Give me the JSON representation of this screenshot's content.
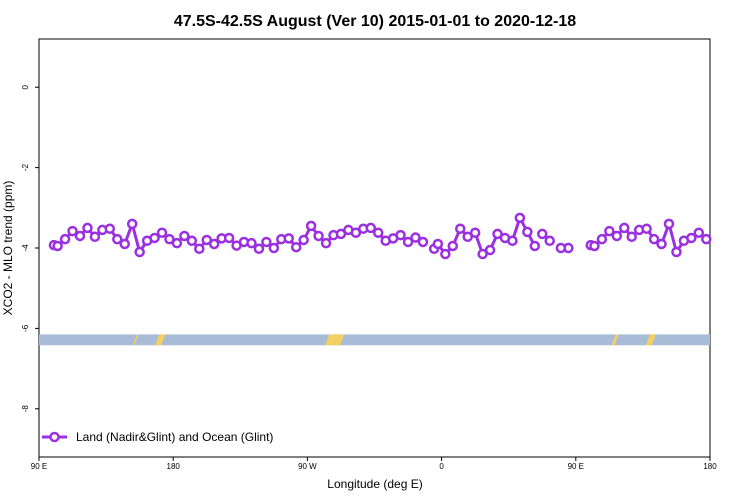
{
  "chart_data": {
    "type": "line",
    "title": "47.5S-42.5S August (Ver 10)   2015-01-01 to 2020-12-18",
    "xlabel": "Longitude (deg E)",
    "ylabel": "XCO2 - MLO trend (ppm)",
    "xlim": [
      90,
      450
    ],
    "ylim": [
      -9.2,
      1.2
    ],
    "x_ticks": [
      {
        "value": 90,
        "label": "90 E"
      },
      {
        "value": 180,
        "label": "180"
      },
      {
        "value": 270,
        "label": "90 W"
      },
      {
        "value": 360,
        "label": "0"
      },
      {
        "value": 450,
        "label": "90 E"
      },
      {
        "value": 540,
        "label": "180"
      }
    ],
    "y_ticks": [
      {
        "value": 0,
        "label": "0"
      },
      {
        "value": -2,
        "label": "-2"
      },
      {
        "value": -4,
        "label": "-4"
      },
      {
        "value": -6,
        "label": "-6"
      },
      {
        "value": -8,
        "label": "-8"
      }
    ],
    "grid": false,
    "legend_position": "bottom-left",
    "series": [
      {
        "name": "Land (Nadir&Glint) and Ocean (Glint)",
        "color": "#9b30e0",
        "segments": [
          {
            "x": [
              100,
              102.5,
              107.5,
              112.5,
              117.5,
              122.5,
              127.5,
              132.5,
              137.5,
              142.5,
              147.5,
              152.5,
              157.5,
              162.5,
              167.5,
              172.5,
              177.5,
              182.5,
              187.5,
              192.5,
              197.5,
              202.5,
              207.5,
              212.5,
              217.5,
              222.5,
              227.5,
              232.5,
              237.5,
              242.5,
              247.5,
              252.5,
              257.5,
              262.5,
              267.5,
              272.5,
              277.5,
              282.5,
              287.5,
              292.5,
              297.5,
              302.5,
              307.5,
              312.5,
              317.5,
              322.5,
              327.5,
              332.5,
              337.5,
              342.5,
              347.5
            ],
            "y": [
              -3.93,
              -3.95,
              -3.78,
              -3.58,
              -3.7,
              -3.5,
              -3.72,
              -3.55,
              -3.52,
              -3.78,
              -3.9,
              -3.4,
              -4.1,
              -3.82,
              -3.75,
              -3.62,
              -3.78,
              -3.88,
              -3.7,
              -3.82,
              -4.02,
              -3.8,
              -3.9,
              -3.76,
              -3.75,
              -3.94,
              -3.85,
              -3.88,
              -4.02,
              -3.85,
              -4.0,
              -3.78,
              -3.76,
              -3.98,
              -3.8,
              -3.45,
              -3.7,
              -3.88,
              -3.68,
              -3.65,
              -3.55,
              -3.62,
              -3.52,
              -3.5,
              -3.62,
              -3.82,
              -3.76,
              -3.68,
              -3.85,
              -3.74,
              -3.85
            ]
          },
          {
            "x": [
              355,
              357.5,
              362.5,
              367.5,
              372.5,
              377.5,
              382.5,
              387.5,
              392.5,
              397.5,
              402.5,
              407.5,
              412.5,
              417.5,
              422.5
            ],
            "y": [
              -4.02,
              -3.9,
              -4.15,
              -3.95,
              -3.52,
              -3.72,
              -3.62,
              -4.15,
              -4.05,
              -3.65,
              -3.75,
              -3.82,
              -3.25,
              -3.6,
              -3.95
            ]
          },
          {
            "x": [
              427.5,
              432.5
            ],
            "y": [
              -3.65,
              -3.82
            ]
          },
          {
            "x": [
              445,
              440
            ],
            "y": [
              -4.0,
              -4.0
            ]
          },
          {
            "x": [
              460,
              462.5,
              467.5,
              472.5,
              477.5,
              482.5,
              487.5,
              492.5,
              497.5,
              502.5,
              507.5,
              512.5,
              517.5,
              522.5,
              527.5,
              532.5,
              537.5
            ],
            "y": [
              -3.93,
              -3.95,
              -3.78,
              -3.58,
              -3.7,
              -3.5,
              -3.72,
              -3.55,
              -3.52,
              -3.78,
              -3.9,
              -3.4,
              -4.1,
              -3.82,
              -3.75,
              -3.62,
              -3.78
            ]
          }
        ]
      }
    ],
    "land_ocean_strip": {
      "y_range": [
        -6.42,
        -6.15
      ],
      "ocean_color": "#a8bcd8",
      "land_color": "#f5d060",
      "land_spans": [
        [
          153,
          154
        ],
        [
          168,
          172
        ],
        [
          282,
          292
        ],
        [
          474,
          476
        ],
        [
          497,
          501
        ]
      ]
    }
  }
}
